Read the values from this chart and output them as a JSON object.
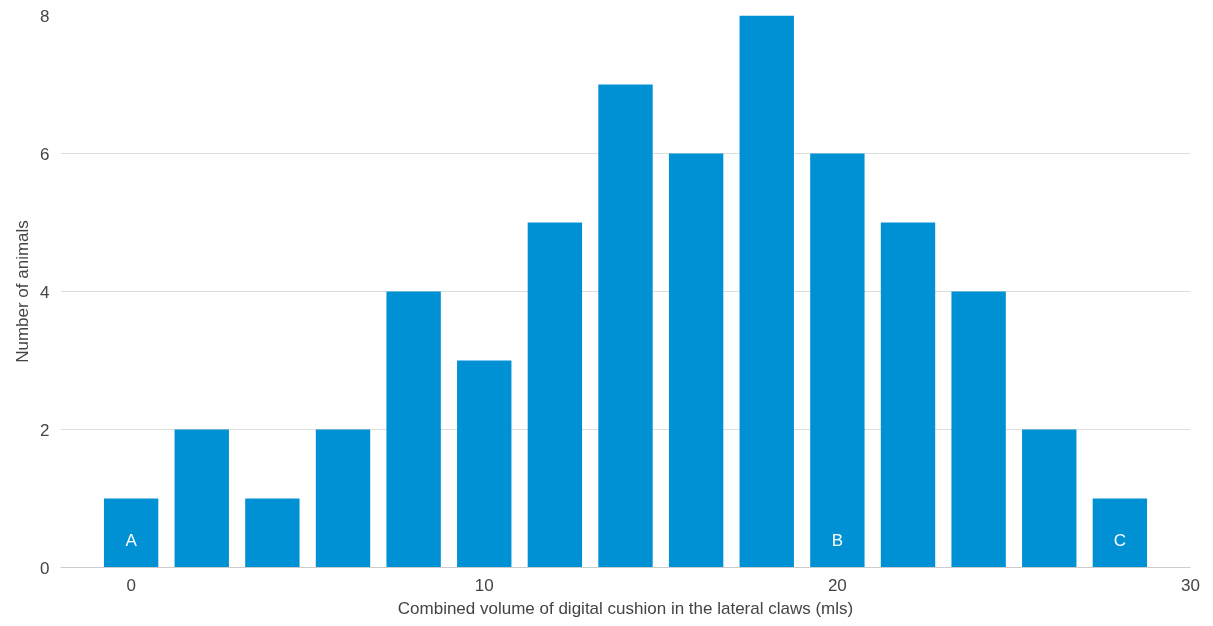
{
  "chart_data": {
    "type": "bar",
    "xlabel": "Combined volume of digital cushion in the lateral claws (mls)",
    "ylabel": "Number of animals",
    "x": [
      0,
      2,
      4,
      6,
      8,
      10,
      12,
      14,
      16,
      18,
      20,
      22,
      24,
      26,
      28
    ],
    "values": [
      1,
      2,
      1,
      2,
      4,
      3,
      5,
      7,
      6,
      8,
      6,
      5,
      4,
      2,
      1
    ],
    "color": "#0091d5",
    "xlim": [
      -2,
      30
    ],
    "xticks": [
      0,
      10,
      20,
      30
    ],
    "ylim": [
      0,
      8
    ],
    "yticks": [
      0,
      2,
      4,
      6,
      8
    ],
    "grid": "y",
    "annotations": [
      {
        "text": "A",
        "x": 0,
        "y": 0
      },
      {
        "text": "B",
        "x": 20,
        "y": 0
      },
      {
        "text": "C",
        "x": 28,
        "y": 0
      }
    ]
  }
}
